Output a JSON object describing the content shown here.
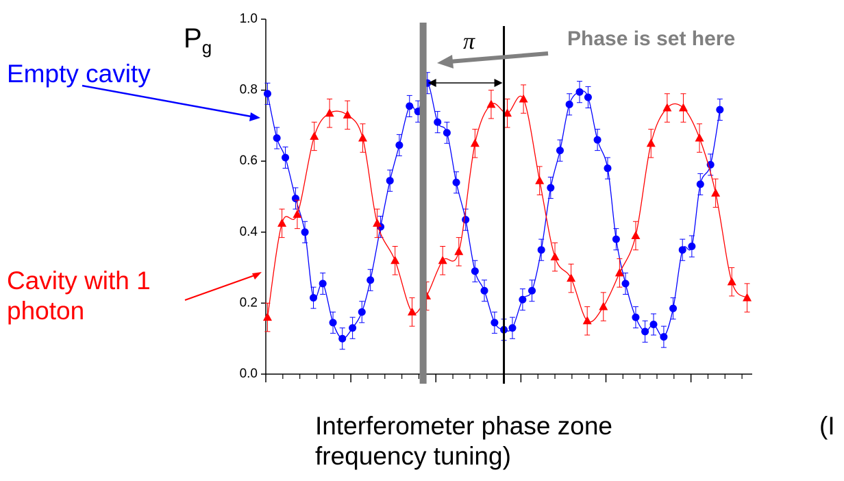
{
  "chart_data": {
    "type": "scatter",
    "ylabel": "P",
    "ylabel_sub": "g",
    "xlabel": "Interferometer phase zone frequency tuning)",
    "xlabel_extra": "(I",
    "annotation": "Phase is set here",
    "annotation_color": "#808080",
    "pi_label": "π",
    "xlim": [
      0,
      5.72
    ],
    "xticks": [
      0,
      1,
      2,
      3,
      4,
      5
    ],
    "xminorticks": [
      0.2,
      0.4,
      0.6,
      0.8,
      1.2,
      1.4,
      1.6,
      1.8,
      2.2,
      2.4,
      2.6,
      2.8,
      3.2,
      3.4,
      3.6,
      3.8,
      4.2,
      4.4,
      4.6,
      4.8,
      5.2,
      5.4,
      5.6
    ],
    "ylim": [
      0,
      1
    ],
    "yticks": [
      {
        "value": 0,
        "label": "0.0"
      },
      0.2,
      0.4,
      0.6,
      0.8,
      {
        "value": 1,
        "label": "1.0"
      }
    ],
    "vlines": [
      {
        "x": 1.85,
        "color": "#808080"
      },
      {
        "x": 2.8,
        "color": "#000000"
      }
    ],
    "series": [
      {
        "name": "Empty cavity",
        "color": "#0000ff",
        "marker": "circle",
        "error": 0.03,
        "x": [
          0.02,
          0.13,
          0.23,
          0.35,
          0.46,
          0.56,
          0.67,
          0.79,
          0.9,
          1.02,
          1.13,
          1.23,
          1.35,
          1.46,
          1.57,
          1.69,
          1.79,
          1.9,
          2.02,
          2.13,
          2.24,
          2.35,
          2.46,
          2.57,
          2.69,
          2.8,
          2.9,
          3.02,
          3.13,
          3.24,
          3.35,
          3.46,
          3.57,
          3.69,
          3.79,
          3.9,
          4.02,
          4.12,
          4.23,
          4.35,
          4.46,
          4.56,
          4.68,
          4.79,
          4.9,
          5.01,
          5.11,
          5.23,
          5.34
        ],
        "values": [
          0.79,
          0.665,
          0.61,
          0.495,
          0.4,
          0.215,
          0.255,
          0.145,
          0.1,
          0.13,
          0.175,
          0.265,
          0.415,
          0.545,
          0.645,
          0.755,
          0.74,
          0.82,
          0.71,
          0.68,
          0.54,
          0.435,
          0.29,
          0.235,
          0.145,
          0.125,
          0.13,
          0.21,
          0.235,
          0.35,
          0.525,
          0.63,
          0.76,
          0.795,
          0.78,
          0.66,
          0.58,
          0.38,
          0.255,
          0.16,
          0.12,
          0.14,
          0.105,
          0.185,
          0.35,
          0.36,
          0.535,
          0.59,
          0.745
        ]
      },
      {
        "name": "Cavity with 1 photon",
        "color": "#ff0000",
        "marker": "triangle",
        "error": 0.04,
        "x": [
          0.02,
          0.19,
          0.37,
          0.57,
          0.75,
          0.96,
          1.14,
          1.31,
          1.52,
          1.72,
          1.89,
          2.08,
          2.27,
          2.46,
          2.65,
          2.84,
          3.03,
          3.22,
          3.4,
          3.59,
          3.78,
          3.97,
          4.16,
          4.35,
          4.53,
          4.72,
          4.91,
          5.1,
          5.29,
          5.48,
          5.66
        ],
        "values": [
          0.16,
          0.425,
          0.45,
          0.67,
          0.735,
          0.73,
          0.665,
          0.425,
          0.32,
          0.175,
          0.22,
          0.32,
          0.345,
          0.65,
          0.76,
          0.735,
          0.775,
          0.545,
          0.33,
          0.27,
          0.15,
          0.19,
          0.285,
          0.39,
          0.65,
          0.75,
          0.75,
          0.665,
          0.51,
          0.26,
          0.215
        ]
      }
    ]
  }
}
